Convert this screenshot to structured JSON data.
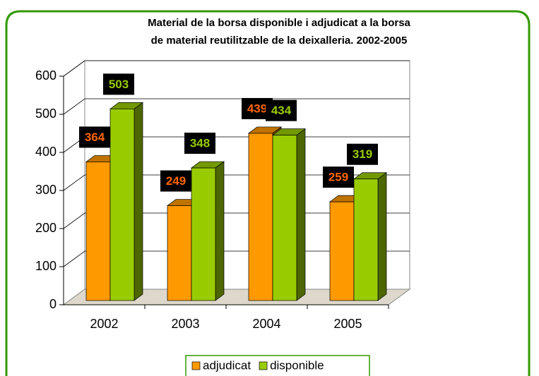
{
  "chart_data": {
    "type": "bar3d",
    "title": [
      "Material de la borsa disponible i adjudicat a la borsa",
      "de material reutilitzable de la deixalleria. 2002-2005"
    ],
    "categories": [
      "2002",
      "2003",
      "2004",
      "2005"
    ],
    "series": [
      {
        "name": "adjudicat",
        "color": "#ff9900",
        "label_color": "#ff6600",
        "values": [
          364,
          249,
          439,
          259
        ]
      },
      {
        "name": "disponible",
        "color": "#99cc00",
        "label_color": "#99cc00",
        "values": [
          503,
          348,
          434,
          319
        ]
      }
    ],
    "ylim": [
      0,
      600
    ],
    "yticks": [
      0,
      100,
      200,
      300,
      400,
      500,
      600
    ],
    "grid": true,
    "legend": "bottom"
  }
}
